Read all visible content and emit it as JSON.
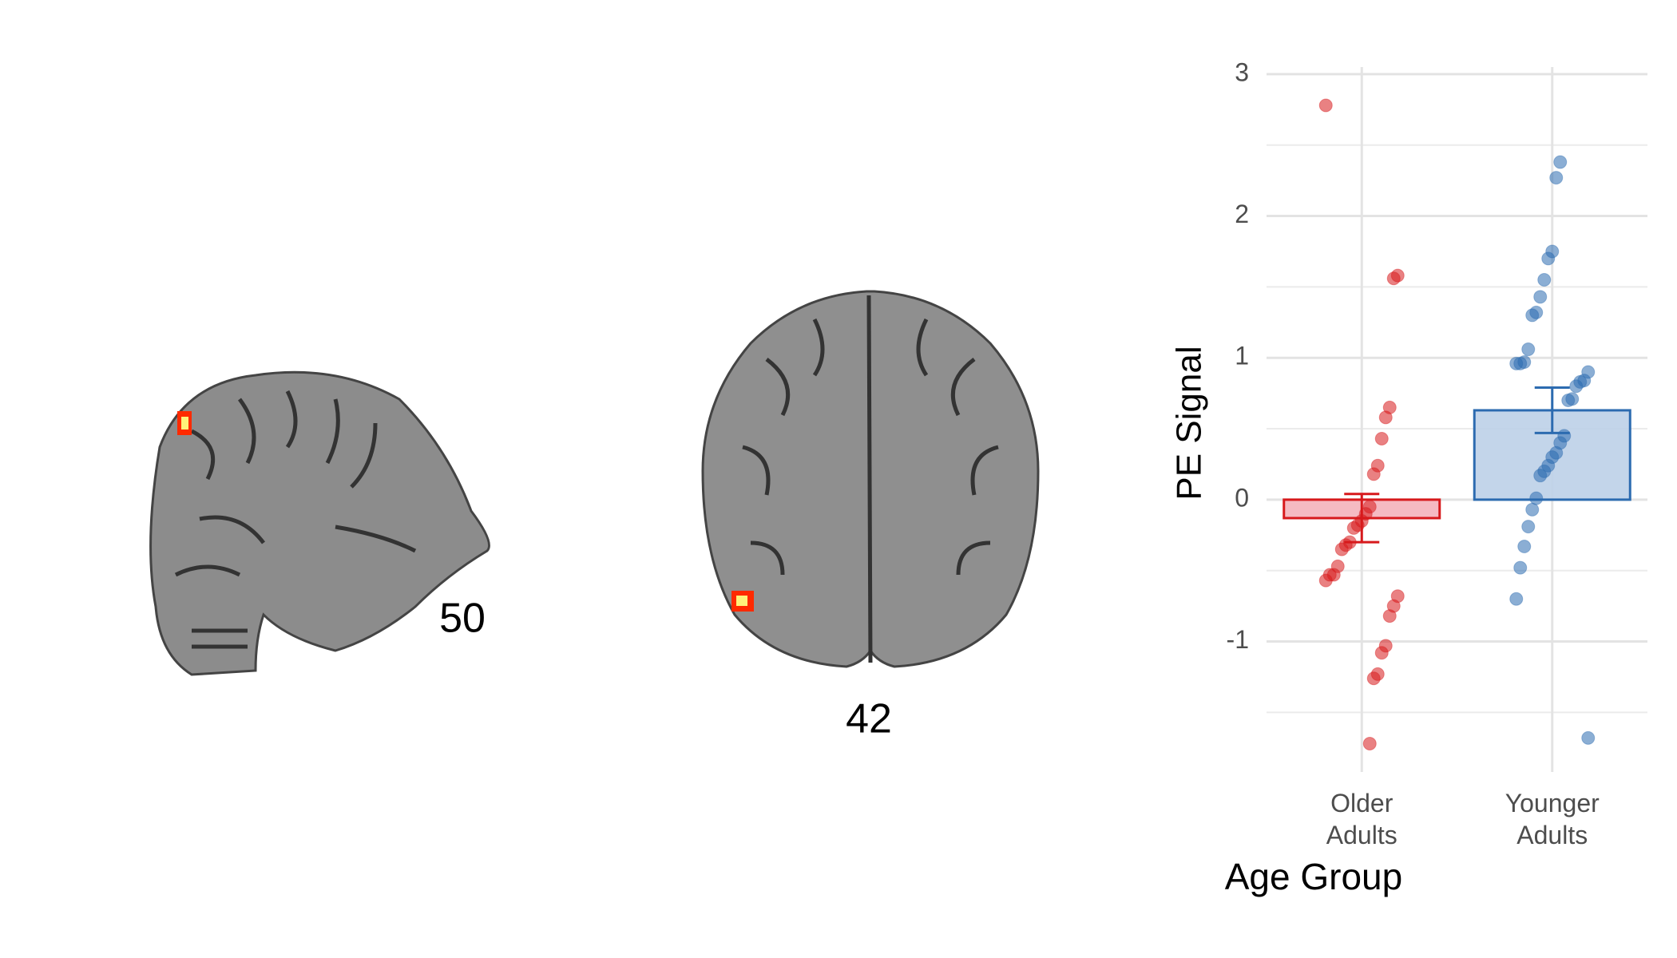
{
  "slice_labels": [
    "50",
    "42"
  ],
  "chart_data": {
    "type": "bar",
    "x_label": "Age Group",
    "y_label": "PE Signal",
    "categories": [
      "Older Adults",
      "Younger Adults"
    ],
    "values": [
      -0.13,
      0.63
    ],
    "errors": [
      0.17,
      0.16
    ],
    "colors": [
      "#d7191c",
      "#2c6bb0"
    ],
    "fills": [
      "#f4b3bb",
      "#bcd0e8"
    ],
    "points": [
      [
        2.78,
        1.58,
        1.56,
        0.65,
        0.58,
        0.43,
        0.24,
        0.18,
        -0.05,
        -0.1,
        -0.15,
        -0.18,
        -0.2,
        -0.3,
        -0.32,
        -0.35,
        -0.47,
        -0.53,
        -0.53,
        -0.57,
        -0.68,
        -0.75,
        -0.82,
        -1.03,
        -1.08,
        -1.23,
        -1.26,
        -1.72
      ],
      [
        2.38,
        2.27,
        1.75,
        1.7,
        1.55,
        1.43,
        1.32,
        1.3,
        1.06,
        0.97,
        0.96,
        0.96,
        0.9,
        0.84,
        0.83,
        0.8,
        0.71,
        0.7,
        0.45,
        0.4,
        0.33,
        0.3,
        0.24,
        0.2,
        0.17,
        0.01,
        -0.07,
        -0.19,
        -0.33,
        -0.48,
        -0.7,
        -1.68
      ]
    ],
    "ylim": [
      -1.92,
      3.05
    ],
    "yticks": [
      -1,
      0,
      1,
      2,
      3
    ],
    "minor_gridlines": [
      -1.5,
      -0.5,
      0.5,
      1.5,
      2.5
    ],
    "grid": true
  }
}
